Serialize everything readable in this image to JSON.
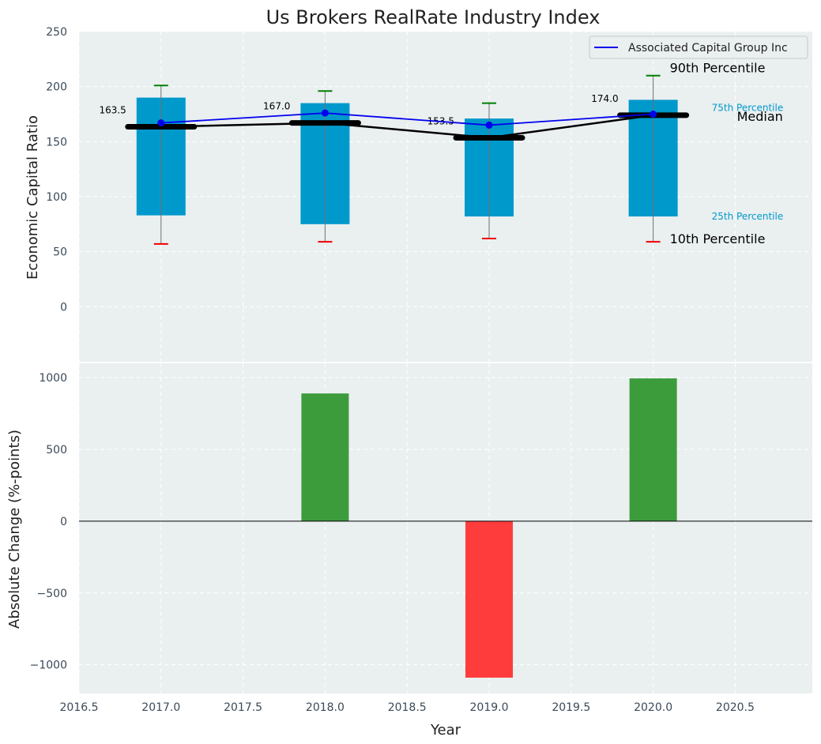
{
  "chart_data": [
    {
      "type": "box",
      "title": "Us Brokers RealRate Industry Index",
      "xlabel": "",
      "ylabel": "Economic Capital Ratio",
      "ylim": [
        -50,
        250
      ],
      "yticks": [
        0,
        50,
        100,
        150,
        200,
        250
      ],
      "x": [
        2017,
        2018,
        2019,
        2020
      ],
      "p10": [
        57,
        59,
        62,
        59
      ],
      "p25": [
        83,
        75,
        82,
        82
      ],
      "median": [
        163.5,
        167.0,
        153.5,
        174.0
      ],
      "median_labels": [
        "163.5",
        "167.0",
        "153.5",
        "174.0"
      ],
      "p75": [
        190,
        185,
        171,
        188
      ],
      "p90": [
        201,
        196,
        185,
        210
      ],
      "series": [
        {
          "name": "Associated Capital Group Inc",
          "values": [
            167,
            176,
            165,
            175
          ],
          "color": "#0000ee"
        }
      ],
      "annotations": {
        "p90": "90th Percentile",
        "p75": "75th Percentile",
        "median": "Median",
        "p25": "25th Percentile",
        "p10": "10th Percentile"
      },
      "colors": {
        "box": "#0099cc",
        "p90_cap": "#008000",
        "p10_cap": "#ee0000",
        "median_line": "#000000",
        "background": "#eaeff0"
      },
      "grid": true,
      "legend": "top-right"
    },
    {
      "type": "bar",
      "title": "",
      "xlabel": "Year",
      "ylabel": "Absolute Change (%-points)",
      "x": [
        2018,
        2019,
        2020
      ],
      "values": [
        890,
        -1090,
        995
      ],
      "ylim": [
        -1200,
        1100
      ],
      "yticks": [
        -1000,
        -500,
        0,
        500,
        1000
      ],
      "ytick_labels": [
        "−1000",
        "−500",
        "0",
        "500",
        "1000"
      ],
      "xlim": [
        2016.5,
        2020.97
      ],
      "xticks": [
        2016.5,
        2017.0,
        2017.5,
        2018.0,
        2018.5,
        2019.0,
        2019.5,
        2020.0,
        2020.5
      ],
      "xtick_labels": [
        "2016.5",
        "2017.0",
        "2017.5",
        "2018.0",
        "2018.5",
        "2019.0",
        "2019.5",
        "2020.0",
        "2020.5"
      ],
      "colors": {
        "positive": "#3c9c3c",
        "negative": "#ff3c3c"
      },
      "grid": true
    }
  ]
}
